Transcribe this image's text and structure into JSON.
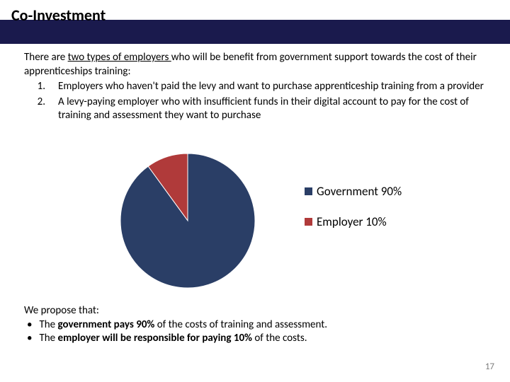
{
  "title": "Co-Investment",
  "intro_prefix": "There are ",
  "intro_underlined": "two types of employers ",
  "intro_suffix": "who will be benefit from government support towards the cost of their apprenticeships training:",
  "list": [
    {
      "n": "1.",
      "text": "Employers who haven't paid the levy and want to purchase apprenticeship training from a provider"
    },
    {
      "n": "2.",
      "text": "A levy-paying employer who with insufficient funds in their digital account to pay for the cost of training and assessment they want to purchase"
    }
  ],
  "pie": {
    "type": "pie",
    "background_color": "#ffffff",
    "radius": 95,
    "slices": [
      {
        "label": "Government 90%",
        "value": 90,
        "color": "#2a3e66"
      },
      {
        "label": "Employer 10%",
        "value": 10,
        "color": "#b03a3a"
      }
    ],
    "start_angle_deg": -90,
    "legend_fontsize": 17,
    "legend_swatch_size": 11
  },
  "propose_heading": "We propose that:",
  "propose_bullets": [
    {
      "pre": "The ",
      "bold": "government pays 90%",
      "post": " of the costs of training and assessment."
    },
    {
      "pre": "The ",
      "bold": "employer will be responsible for paying 10%",
      "post": " of the costs."
    }
  ],
  "page_number": "17",
  "title_bar_color": "#1a1a4d"
}
